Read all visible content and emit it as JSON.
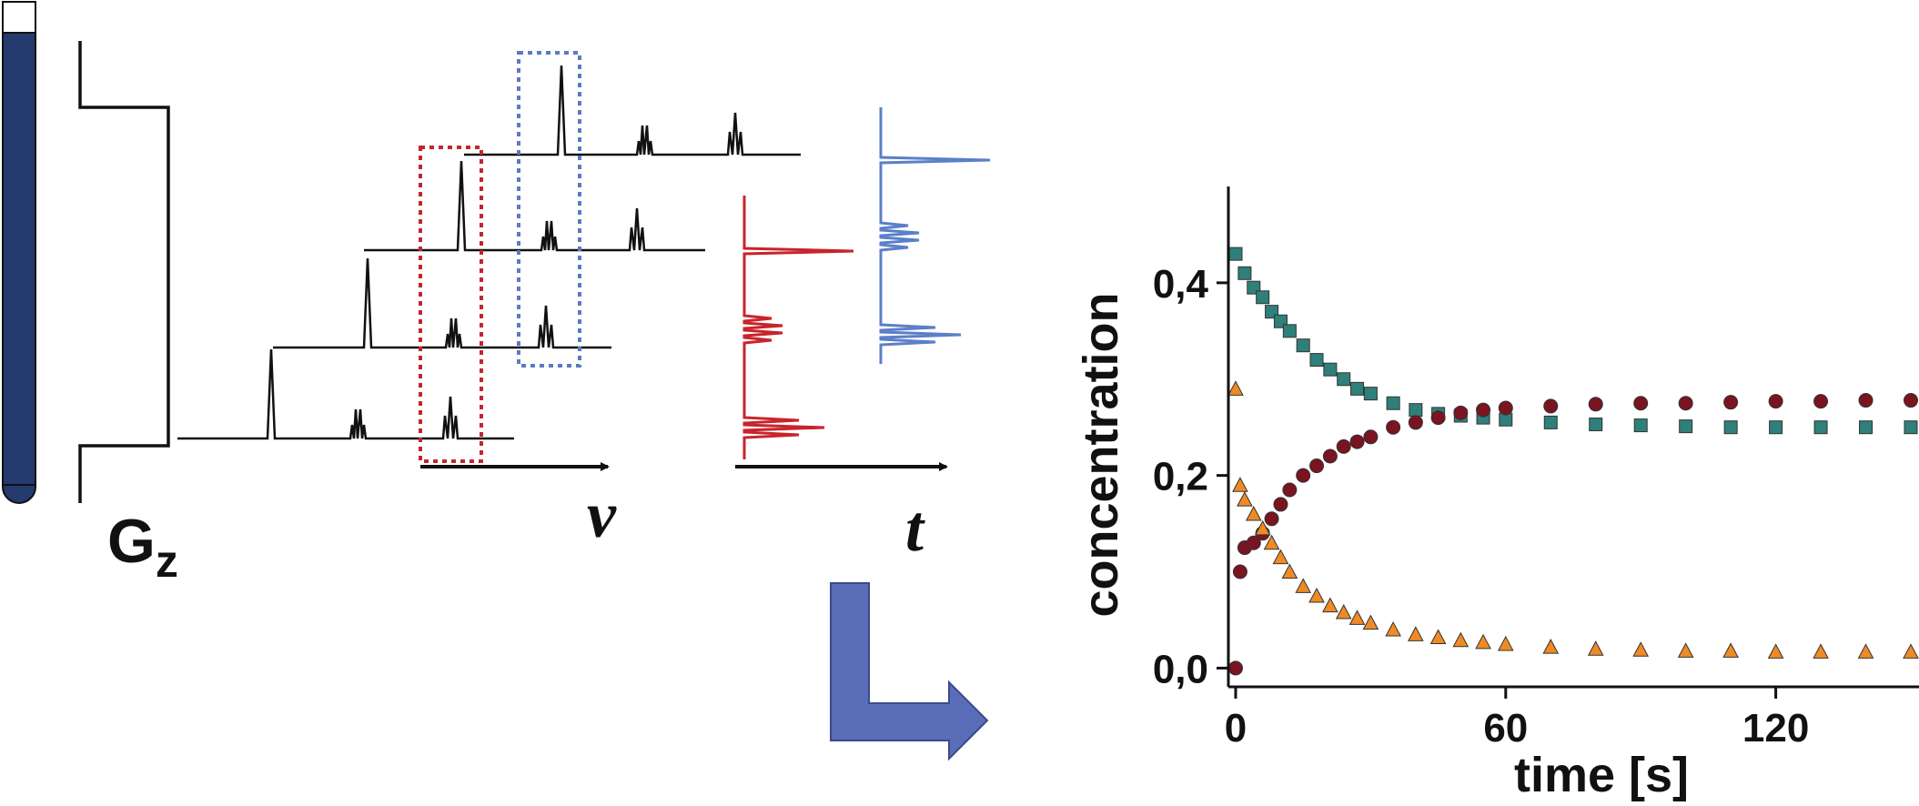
{
  "diagram": {
    "gradient_label": "G",
    "gradient_subscript": "z",
    "frequency_axis_label": "v",
    "time_axis_label": "t",
    "spectra_stack_count": 4,
    "colors": {
      "tube": "#253a6e",
      "red_box": "#c0272d",
      "blue_box": "#5a7bc4",
      "red_trace": "#c8242b",
      "blue_trace": "#5b7fc8",
      "arrow_fill": "#5a6db8"
    }
  },
  "chart_data": {
    "type": "scatter",
    "xlabel": "time [s]",
    "ylabel": "concentration",
    "xlim": [
      0,
      150
    ],
    "ylim": [
      -0.01,
      0.5
    ],
    "xticks": [
      "0",
      "60",
      "120"
    ],
    "yticks": [
      "0,0",
      "0,2",
      "0,4"
    ],
    "xtick_values": [
      0,
      60,
      120
    ],
    "ytick_values": [
      0.0,
      0.2,
      0.4
    ],
    "series": [
      {
        "marker": "square",
        "color": "#2f7f7a",
        "x": [
          0,
          2,
          4,
          6,
          8,
          10,
          12,
          15,
          18,
          21,
          24,
          27,
          30,
          35,
          40,
          45,
          50,
          55,
          60,
          70,
          80,
          90,
          100,
          110,
          120,
          130,
          140,
          150
        ],
        "y": [
          0.43,
          0.41,
          0.395,
          0.385,
          0.37,
          0.36,
          0.35,
          0.335,
          0.32,
          0.31,
          0.3,
          0.29,
          0.285,
          0.275,
          0.268,
          0.264,
          0.262,
          0.26,
          0.258,
          0.255,
          0.253,
          0.252,
          0.251,
          0.25,
          0.25,
          0.25,
          0.25,
          0.25
        ]
      },
      {
        "marker": "circle",
        "color": "#7a1420",
        "x": [
          0,
          1,
          2,
          4,
          6,
          8,
          10,
          12,
          15,
          18,
          21,
          24,
          27,
          30,
          35,
          40,
          45,
          50,
          55,
          60,
          70,
          80,
          90,
          100,
          110,
          120,
          130,
          140,
          150
        ],
        "y": [
          0.0,
          0.1,
          0.125,
          0.13,
          0.14,
          0.155,
          0.17,
          0.185,
          0.2,
          0.21,
          0.22,
          0.23,
          0.235,
          0.24,
          0.25,
          0.255,
          0.26,
          0.265,
          0.268,
          0.27,
          0.272,
          0.274,
          0.275,
          0.275,
          0.276,
          0.277,
          0.277,
          0.278,
          0.278
        ]
      },
      {
        "marker": "triangle",
        "color": "#f08a24",
        "x": [
          0,
          1,
          2,
          4,
          6,
          8,
          10,
          12,
          15,
          18,
          21,
          24,
          27,
          30,
          35,
          40,
          45,
          50,
          55,
          60,
          70,
          80,
          90,
          100,
          110,
          120,
          130,
          140,
          150
        ],
        "y": [
          0.29,
          0.19,
          0.175,
          0.16,
          0.145,
          0.13,
          0.115,
          0.1,
          0.085,
          0.075,
          0.065,
          0.058,
          0.052,
          0.047,
          0.04,
          0.035,
          0.032,
          0.029,
          0.027,
          0.025,
          0.022,
          0.02,
          0.019,
          0.018,
          0.018,
          0.017,
          0.017,
          0.017,
          0.017
        ]
      }
    ]
  }
}
